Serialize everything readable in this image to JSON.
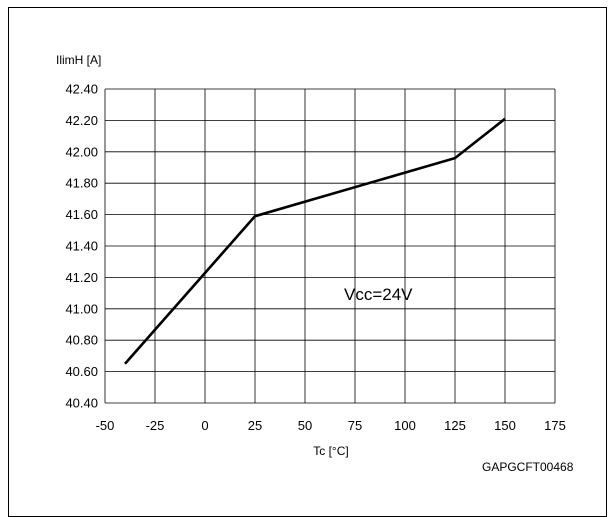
{
  "chart_data": {
    "type": "line",
    "ylabel": "IlimH [A]",
    "xlabel": "Tc [°C]",
    "annotation": "Vcc=24V",
    "figure_code": "GAPGCFT00468",
    "xlim": [
      -50,
      175
    ],
    "ylim": [
      40.4,
      42.4
    ],
    "xticks": [
      "-50",
      "-25",
      "0",
      "25",
      "50",
      "75",
      "100",
      "125",
      "150",
      "175"
    ],
    "yticks": [
      "42.40",
      "42.20",
      "42.00",
      "41.80",
      "41.60",
      "41.40",
      "41.20",
      "41.00",
      "40.80",
      "40.60",
      "40.40"
    ],
    "grid": true,
    "series": [
      {
        "x": [
          -40,
          25,
          125,
          150
        ],
        "values": [
          40.65,
          41.59,
          41.96,
          42.21
        ]
      }
    ]
  }
}
